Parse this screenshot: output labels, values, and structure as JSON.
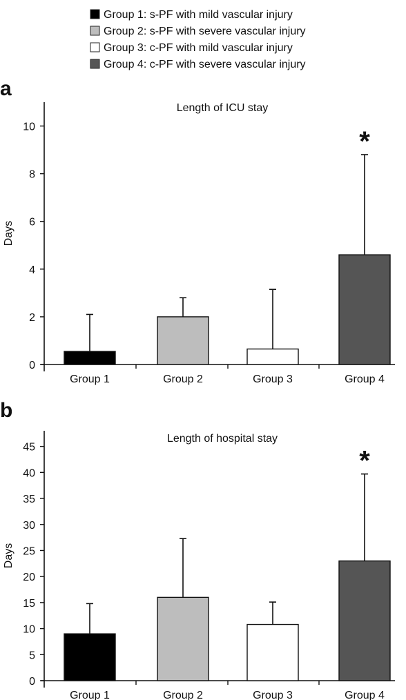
{
  "legend": [
    {
      "label": "Group 1: s-PF with mild vascular injury",
      "color": "#000000"
    },
    {
      "label": "Group 2: s-PF with severe vascular injury",
      "color": "#bdbdbd"
    },
    {
      "label": "Group 3: c-PF with mild vascular injury",
      "color": "#ffffff"
    },
    {
      "label": "Group 4: c-PF with severe vascular injury",
      "color": "#555555"
    }
  ],
  "chart_data": [
    {
      "panel": "a",
      "type": "bar",
      "title": "Length of ICU stay",
      "ylabel": "Days",
      "xlabel": "",
      "categories": [
        "Group 1",
        "Group 2",
        "Group 3",
        "Group 4"
      ],
      "values": [
        0.55,
        2.0,
        0.65,
        4.6
      ],
      "error_upper": [
        2.1,
        2.8,
        3.15,
        8.8
      ],
      "colors": [
        "#000000",
        "#bdbdbd",
        "#ffffff",
        "#555555"
      ],
      "significance": [
        null,
        null,
        null,
        "*"
      ],
      "ylim": [
        0,
        11
      ],
      "yticks": [
        0,
        2,
        4,
        6,
        8,
        10
      ],
      "grid": false
    },
    {
      "panel": "b",
      "type": "bar",
      "title": "Length of hospital stay",
      "ylabel": "Days",
      "xlabel": "",
      "categories": [
        "Group 1",
        "Group 2",
        "Group 3",
        "Group 4"
      ],
      "values": [
        9.0,
        16.0,
        10.8,
        23.0
      ],
      "error_upper": [
        14.8,
        27.3,
        15.1,
        39.7
      ],
      "colors": [
        "#000000",
        "#bdbdbd",
        "#ffffff",
        "#555555"
      ],
      "significance": [
        null,
        null,
        null,
        "*"
      ],
      "ylim": [
        0,
        48
      ],
      "yticks": [
        0,
        5,
        10,
        15,
        20,
        25,
        30,
        35,
        40,
        45
      ],
      "grid": false
    }
  ]
}
